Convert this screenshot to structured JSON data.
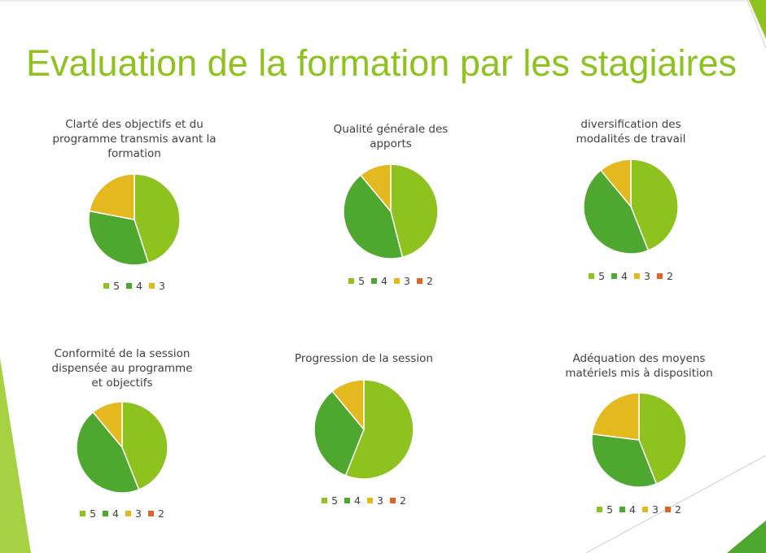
{
  "slide": {
    "title": "Evaluation de la formation par les stagiaires"
  },
  "colors": {
    "5": "#8dc21f",
    "4": "#4ea72e",
    "3": "#e4b81f",
    "2": "#e06524",
    "accent": "#8dc21f"
  },
  "chart_data": [
    {
      "type": "pie",
      "title": "Clarté des objectifs et du programme transmis avant la formation",
      "categories": [
        "5",
        "4",
        "3"
      ],
      "values": [
        45,
        33,
        22
      ]
    },
    {
      "type": "pie",
      "title": "Qualité générale des apports",
      "categories": [
        "5",
        "4",
        "3",
        "2"
      ],
      "values": [
        46,
        43,
        11,
        0
      ]
    },
    {
      "type": "pie",
      "title": "diversification des modalités de travail",
      "categories": [
        "5",
        "4",
        "3",
        "2"
      ],
      "values": [
        44,
        45,
        11,
        0
      ]
    },
    {
      "type": "pie",
      "title": "Conformité de la session dispensée au programme et objectifs",
      "categories": [
        "5",
        "4",
        "3",
        "2"
      ],
      "values": [
        44,
        45,
        11,
        0
      ]
    },
    {
      "type": "pie",
      "title": "Progression de la session",
      "categories": [
        "5",
        "4",
        "3",
        "2"
      ],
      "values": [
        56,
        33,
        11,
        0
      ]
    },
    {
      "type": "pie",
      "title": "Adéquation des moyens matériels mis à disposition",
      "categories": [
        "5",
        "4",
        "3",
        "2"
      ],
      "values": [
        44,
        33,
        23,
        0
      ]
    }
  ]
}
